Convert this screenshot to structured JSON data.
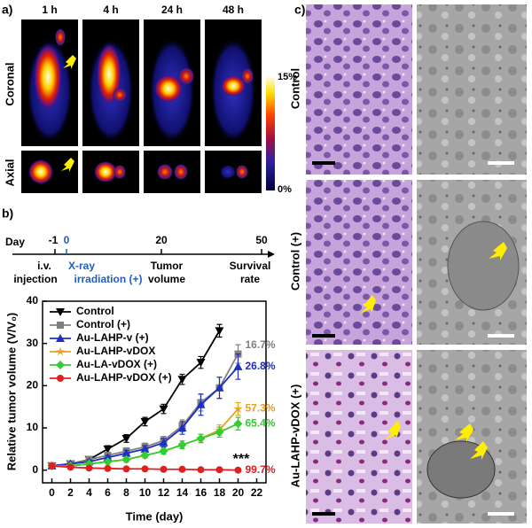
{
  "panel_a": {
    "label": "a)",
    "times": [
      "1 h",
      "4 h",
      "24 h",
      "48 h"
    ],
    "rows": [
      "Coronal",
      "Axial"
    ],
    "colorbar": {
      "max": "15%",
      "min": "0%"
    }
  },
  "panel_b": {
    "label": "b)",
    "timeline": {
      "axis_label": "Day",
      "events": [
        {
          "day": "-1",
          "below": [
            "i.v.",
            "injection"
          ]
        },
        {
          "day": "0",
          "below": [
            "X-ray",
            "irradiation (+)"
          ]
        },
        {
          "day": "20",
          "below": [
            "Tumor",
            "volume"
          ]
        },
        {
          "day": "50",
          "below": [
            "Survival",
            "rate"
          ]
        }
      ]
    }
  },
  "chart_data": {
    "type": "line",
    "x_label": "Time (day)",
    "y_label": "Relative tumor volume (V/V₀)",
    "x": [
      0,
      2,
      4,
      6,
      8,
      10,
      12,
      14,
      16,
      18,
      20
    ],
    "xlim": [
      -1,
      23
    ],
    "xticks": [
      0,
      2,
      4,
      6,
      8,
      10,
      12,
      14,
      16,
      18,
      20,
      22
    ],
    "ylim": [
      -3,
      40
    ],
    "yticks": [
      0,
      10,
      20,
      30,
      40
    ],
    "legend": "upper left",
    "significance": "***",
    "series": [
      {
        "name": "Control",
        "color": "#000000",
        "marker": "triangle-down",
        "values": [
          1,
          1.5,
          2.5,
          5,
          7.5,
          11.5,
          14.5,
          21.5,
          25.5,
          33,
          null
        ],
        "errors": [
          0.2,
          0.3,
          0.4,
          0.8,
          0.9,
          1,
          1.1,
          1.2,
          1.4,
          1.5,
          null
        ]
      },
      {
        "name": "Control (+)",
        "color": "#808080",
        "marker": "square",
        "values": [
          1,
          1.5,
          2.5,
          3.5,
          4.5,
          5.5,
          7,
          10.5,
          16,
          19.5,
          27.5
        ],
        "errors": [
          0.2,
          0.3,
          0.4,
          0.6,
          0.8,
          0.9,
          1,
          1.4,
          2,
          2.5,
          2.2
        ],
        "end_label": "16.7%"
      },
      {
        "name": "Au-LAHP-v (+)",
        "color": "#1f2fbf",
        "marker": "triangle-up",
        "values": [
          1,
          1.5,
          2,
          3,
          4,
          5,
          6.5,
          10,
          15.5,
          19.5,
          24.5
        ],
        "errors": [
          0.2,
          0.3,
          0.4,
          0.5,
          0.7,
          0.8,
          1,
          1.5,
          2.5,
          2.5,
          3
        ],
        "end_label": "26.8%"
      },
      {
        "name": "Au-LAHP-vDOX",
        "color": "#e8a020",
        "marker": "star",
        "values": [
          1,
          1,
          1.5,
          2,
          2.5,
          3.5,
          4.5,
          6,
          7.5,
          9.5,
          14.5
        ],
        "errors": [
          0.2,
          0.2,
          0.3,
          0.4,
          0.5,
          0.6,
          0.7,
          0.9,
          1,
          1.2,
          1.5
        ],
        "end_label": "57.3%"
      },
      {
        "name": "Au-LA-vDOX (+)",
        "color": "#33cc33",
        "marker": "diamond",
        "values": [
          1,
          1,
          1.5,
          2,
          2.5,
          3.5,
          4.5,
          6,
          7.5,
          9,
          11
        ],
        "errors": [
          0.2,
          0.2,
          0.3,
          0.4,
          0.5,
          0.6,
          0.7,
          0.9,
          1,
          1.2,
          1.5
        ],
        "end_label": "65.4%"
      },
      {
        "name": "Au-LAHP-vDOX (+)",
        "color": "#e02020",
        "marker": "circle",
        "values": [
          1,
          0.7,
          0.5,
          0.4,
          0.3,
          0.3,
          0.2,
          0.2,
          0.1,
          0.1,
          0
        ],
        "errors": [
          0.2,
          0.2,
          0.2,
          0.1,
          0.1,
          0.1,
          0.1,
          0.1,
          0.1,
          0.1,
          0.1
        ],
        "end_label": "99.7%"
      }
    ]
  },
  "panel_c": {
    "label": "c)",
    "rows": [
      "Control",
      "Control (+)",
      "Au-LAHP-vDOX (+)"
    ]
  }
}
